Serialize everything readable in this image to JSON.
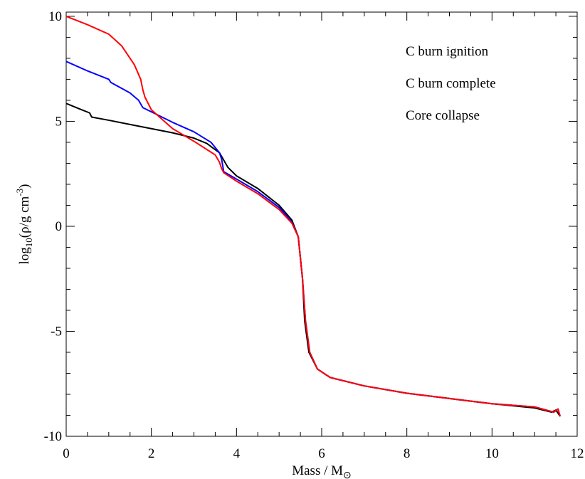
{
  "chart_data": {
    "type": "line",
    "x_label_parts": [
      "Mass / M",
      "⊙"
    ],
    "y_label_parts": [
      "log",
      "10",
      "(ρ/g cm",
      "-3",
      ")"
    ],
    "xlim": [
      0,
      12
    ],
    "ylim": [
      -10,
      10.2
    ],
    "xticks": [
      0,
      2,
      4,
      6,
      8,
      10,
      12
    ],
    "yticks": [
      -10,
      -5,
      0,
      5,
      10
    ],
    "xminorticks": [
      0.5,
      1,
      1.5,
      2.5,
      3,
      3.5,
      4.5,
      5,
      5.5,
      6.5,
      7,
      7.5,
      8.5,
      9,
      9.5,
      10.5,
      11,
      11.5
    ],
    "yminorticks": [
      -9,
      -8,
      -7,
      -6,
      -4,
      -3,
      -2,
      -1,
      1,
      2,
      3,
      4,
      6,
      7,
      8,
      9
    ],
    "legend": "upper right",
    "series": [
      {
        "name": "C burn ignition",
        "color": "#000000",
        "x": [
          0,
          0.3,
          0.55,
          0.6,
          1,
          1.5,
          2,
          2.5,
          3,
          3.3,
          3.6,
          3.8,
          4,
          4.5,
          5,
          5.3,
          5.45,
          5.55,
          5.6,
          5.7,
          5.9,
          6.2,
          7,
          8,
          9,
          10,
          11,
          11.4,
          11.5,
          11.6
        ],
        "values": [
          5.85,
          5.6,
          5.4,
          5.2,
          5.05,
          4.85,
          4.65,
          4.45,
          4.2,
          3.95,
          3.5,
          2.8,
          2.4,
          1.8,
          1.0,
          0.3,
          -0.5,
          -2.5,
          -4.5,
          -6.0,
          -6.8,
          -7.2,
          -7.6,
          -7.95,
          -8.2,
          -8.45,
          -8.65,
          -8.85,
          -8.75,
          -9.05
        ]
      },
      {
        "name": "C burn complete",
        "color": "#0000ff",
        "x": [
          0,
          0.5,
          1,
          1.05,
          1.5,
          1.7,
          1.8,
          2,
          2.5,
          3,
          3.4,
          3.6,
          3.65,
          3.7,
          4,
          4.5,
          5,
          5.3,
          5.45,
          5.55,
          5.62,
          5.72,
          5.9,
          6.2,
          7,
          8,
          9,
          10,
          11,
          11.45,
          11.55,
          11.6
        ],
        "values": [
          7.85,
          7.4,
          7.0,
          6.85,
          6.35,
          6.0,
          5.65,
          5.45,
          4.95,
          4.5,
          4.0,
          3.5,
          3.2,
          2.6,
          2.25,
          1.65,
          0.9,
          0.2,
          -0.5,
          -2.5,
          -4.5,
          -6.0,
          -6.8,
          -7.2,
          -7.6,
          -7.95,
          -8.2,
          -8.45,
          -8.6,
          -8.85,
          -8.7,
          -9.05
        ]
      },
      {
        "name": "Core collapse",
        "color": "#ff0000",
        "x": [
          0,
          0.5,
          1,
          1.3,
          1.6,
          1.75,
          1.8,
          1.85,
          2,
          2.5,
          3,
          3.5,
          3.6,
          3.65,
          3.7,
          4,
          4.5,
          5,
          5.3,
          5.45,
          5.55,
          5.62,
          5.72,
          5.9,
          6.2,
          7,
          8,
          9,
          10,
          11,
          11.45,
          11.55,
          11.6
        ],
        "values": [
          10.0,
          9.6,
          9.15,
          8.6,
          7.7,
          7.0,
          6.5,
          6.15,
          5.55,
          4.65,
          4.05,
          3.4,
          3.05,
          2.75,
          2.55,
          2.15,
          1.55,
          0.8,
          0.15,
          -0.5,
          -2.5,
          -4.5,
          -6.0,
          -6.8,
          -7.2,
          -7.6,
          -7.95,
          -8.2,
          -8.45,
          -8.6,
          -8.85,
          -8.7,
          -9.05
        ]
      }
    ]
  }
}
